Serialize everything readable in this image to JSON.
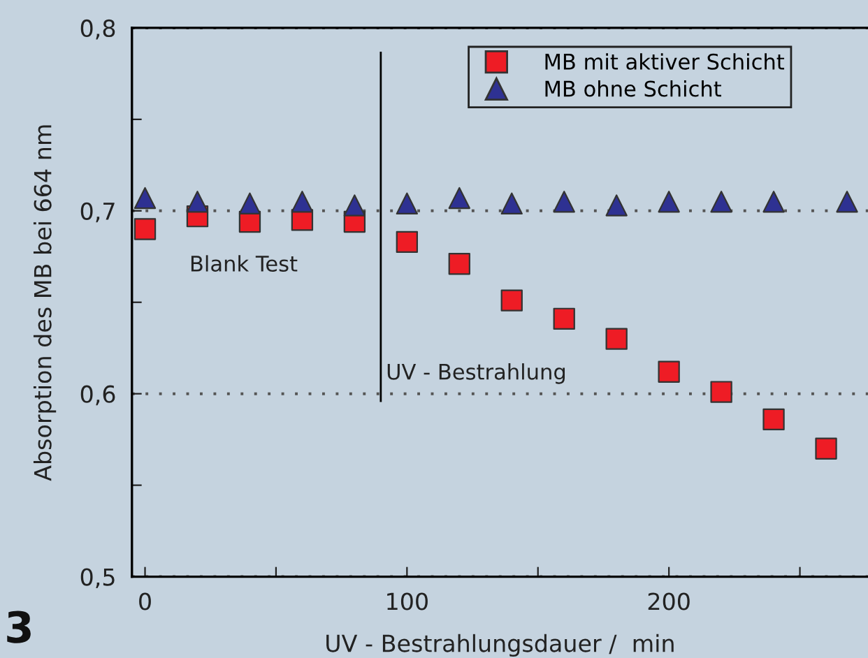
{
  "chart_data": {
    "type": "scatter",
    "xlabel": "UV - Bestrahlungsdauer /  min",
    "ylabel": "Absorption des MB bei 664 nm",
    "series": [
      {
        "name": "MB mit aktiver Schicht",
        "color": "#ee1c25",
        "marker": "square",
        "x": [
          0,
          20,
          40,
          60,
          80,
          100,
          120,
          140,
          160,
          180,
          200,
          220,
          240,
          260
        ],
        "values": [
          0.69,
          0.697,
          0.694,
          0.695,
          0.694,
          0.683,
          0.671,
          0.651,
          0.641,
          0.63,
          0.612,
          0.601,
          0.586,
          0.57
        ]
      },
      {
        "name": "MB ohne Schicht",
        "color": "#2e3192",
        "marker": "triangle",
        "x": [
          0,
          20,
          40,
          60,
          80,
          100,
          120,
          140,
          160,
          180,
          200,
          220,
          240,
          268
        ],
        "values": [
          0.707,
          0.705,
          0.704,
          0.705,
          0.703,
          0.704,
          0.707,
          0.704,
          0.705,
          0.703,
          0.705,
          0.705,
          0.705,
          0.705
        ]
      }
    ],
    "xlim": [
      -5,
      276
    ],
    "ylim": [
      0.5,
      0.8
    ],
    "xticks": [
      0,
      {
        "value": 50,
        "label": null
      },
      100,
      {
        "value": 150,
        "label": null
      },
      200,
      {
        "value": 250,
        "label": null
      }
    ],
    "yticks": [
      {
        "value": 0.5,
        "label": "0,5"
      },
      {
        "value": 0.55,
        "label": null
      },
      {
        "value": 0.6,
        "label": "0,6"
      },
      {
        "value": 0.65,
        "label": null
      },
      {
        "value": 0.7,
        "label": "0,7"
      },
      {
        "value": 0.75,
        "label": null
      },
      {
        "value": 0.8,
        "label": "0,8"
      }
    ],
    "grid": "y",
    "ref_lines": [
      {
        "axis": "x",
        "value": 90,
        "label": null,
        "color": "#000000",
        "line_style": "solid"
      }
    ],
    "annotations": [
      "Blank Test",
      "UV - Bestrahlung",
      "3"
    ],
    "legend": "top right"
  }
}
